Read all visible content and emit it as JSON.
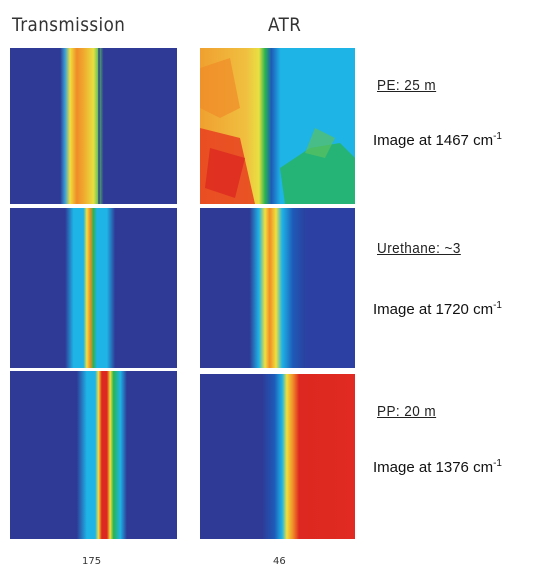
{
  "headers": {
    "transmission": "Transmission",
    "atr": "ATR"
  },
  "rows": [
    {
      "layer": "PE: 25   m",
      "caption_prefix": "Image at 1467 cm",
      "caption_exp": "-1"
    },
    {
      "layer": "Urethane: ~3",
      "caption_prefix": "Image at 1720 cm",
      "caption_exp": "-1"
    },
    {
      "layer": "PP: 20   m",
      "caption_prefix": "Image at 1376 cm",
      "caption_exp": "-1"
    }
  ],
  "footer": {
    "transmission_value": "175",
    "atr_value": "46"
  },
  "colors": {
    "background": "#2e3a96",
    "cyan": "#1eb4e6",
    "green": "#28b450",
    "yellow": "#f0e03c",
    "orange": "#f08c28",
    "red": "#dc2820"
  }
}
